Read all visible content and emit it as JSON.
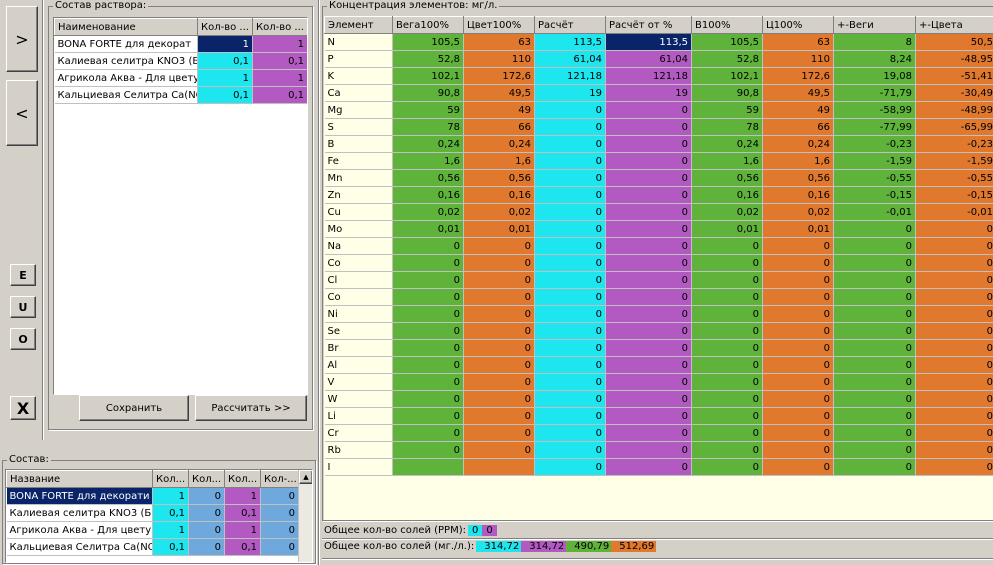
{
  "nav": {
    "next": ">",
    "prev": "<",
    "e": "E",
    "u": "U",
    "o": "O",
    "close": "X"
  },
  "solution": {
    "title": "Состав раствора:",
    "columns": [
      "Наименование",
      "Кол-во ...",
      "Кол-во ..."
    ],
    "rows": [
      [
        "BONA FORTE для декорат",
        "1",
        "1"
      ],
      [
        "Калиевая селитра KNO3 (Б",
        "0,1",
        "0,1"
      ],
      [
        "Агрикола Аква - Для цвету",
        "1",
        "1"
      ],
      [
        "Кальциевая Селитра Ca(NO",
        "0,1",
        "0,1"
      ]
    ],
    "save": "Сохранить",
    "calc": "Рассчитать >>"
  },
  "composition": {
    "title": "Состав:",
    "columns": [
      "Название",
      "Кол...",
      "Кол...",
      "Кол...",
      "Кол-..."
    ],
    "rows": [
      [
        "BONA FORTE для декорати",
        "1",
        "0",
        "1",
        "0"
      ],
      [
        "Калиевая селитра KNO3 (Б",
        "0,1",
        "0",
        "0,1",
        "0"
      ],
      [
        "Агрикола Аква - Для цветущ",
        "1",
        "0",
        "1",
        "0"
      ],
      [
        "Кальциевая Селитра Ca(NO",
        "0,1",
        "0",
        "0,1",
        "0"
      ]
    ]
  },
  "conc": {
    "title": "Концентрация элементов: мг/л.",
    "columns": [
      "Элемент",
      "Вега100%",
      "Цвет100%",
      "Расчёт",
      "Расчёт от %",
      "B100%",
      "Ц100%",
      "+-Веги",
      "+-Цвета"
    ],
    "rows": [
      [
        "N",
        "105,5",
        "63",
        "113,5",
        "113,5",
        "105,5",
        "63",
        "8",
        "50,5"
      ],
      [
        "P",
        "52,8",
        "110",
        "61,04",
        "61,04",
        "52,8",
        "110",
        "8,24",
        "-48,95"
      ],
      [
        "K",
        "102,1",
        "172,6",
        "121,18",
        "121,18",
        "102,1",
        "172,6",
        "19,08",
        "-51,41"
      ],
      [
        "Ca",
        "90,8",
        "49,5",
        "19",
        "19",
        "90,8",
        "49,5",
        "-71,79",
        "-30,49"
      ],
      [
        "Mg",
        "59",
        "49",
        "0",
        "0",
        "59",
        "49",
        "-58,99",
        "-48,99"
      ],
      [
        "S",
        "78",
        "66",
        "0",
        "0",
        "78",
        "66",
        "-77,99",
        "-65,99"
      ],
      [
        "B",
        "0,24",
        "0,24",
        "0",
        "0",
        "0,24",
        "0,24",
        "-0,23",
        "-0,23"
      ],
      [
        "Fe",
        "1,6",
        "1,6",
        "0",
        "0",
        "1,6",
        "1,6",
        "-1,59",
        "-1,59"
      ],
      [
        "Mn",
        "0,56",
        "0,56",
        "0",
        "0",
        "0,56",
        "0,56",
        "-0,55",
        "-0,55"
      ],
      [
        "Zn",
        "0,16",
        "0,16",
        "0",
        "0",
        "0,16",
        "0,16",
        "-0,15",
        "-0,15"
      ],
      [
        "Cu",
        "0,02",
        "0,02",
        "0",
        "0",
        "0,02",
        "0,02",
        "-0,01",
        "-0,01"
      ],
      [
        "Mo",
        "0,01",
        "0,01",
        "0",
        "0",
        "0,01",
        "0,01",
        "0",
        "0"
      ],
      [
        "Na",
        "0",
        "0",
        "0",
        "0",
        "0",
        "0",
        "0",
        "0"
      ],
      [
        "Co",
        "0",
        "0",
        "0",
        "0",
        "0",
        "0",
        "0",
        "0"
      ],
      [
        "Cl",
        "0",
        "0",
        "0",
        "0",
        "0",
        "0",
        "0",
        "0"
      ],
      [
        "Co",
        "0",
        "0",
        "0",
        "0",
        "0",
        "0",
        "0",
        "0"
      ],
      [
        "Ni",
        "0",
        "0",
        "0",
        "0",
        "0",
        "0",
        "0",
        "0"
      ],
      [
        "Se",
        "0",
        "0",
        "0",
        "0",
        "0",
        "0",
        "0",
        "0"
      ],
      [
        "Br",
        "0",
        "0",
        "0",
        "0",
        "0",
        "0",
        "0",
        "0"
      ],
      [
        "Al",
        "0",
        "0",
        "0",
        "0",
        "0",
        "0",
        "0",
        "0"
      ],
      [
        "V",
        "0",
        "0",
        "0",
        "0",
        "0",
        "0",
        "0",
        "0"
      ],
      [
        "W",
        "0",
        "0",
        "0",
        "0",
        "0",
        "0",
        "0",
        "0"
      ],
      [
        "Li",
        "0",
        "0",
        "0",
        "0",
        "0",
        "0",
        "0",
        "0"
      ],
      [
        "Cr",
        "0",
        "0",
        "0",
        "0",
        "0",
        "0",
        "0",
        "0"
      ],
      [
        "Rb",
        "0",
        "0",
        "0",
        "0",
        "0",
        "0",
        "0",
        "0"
      ],
      [
        "I",
        "",
        "",
        "0",
        "0",
        "0",
        "0",
        "0",
        "0"
      ]
    ]
  },
  "totals": {
    "ppm_label": "Общее кол-во солей (PPM):",
    "ppm_values": [
      "0",
      "0"
    ],
    "mg_label": "Общее кол-во солей (мг./л.):",
    "mg_values": [
      "314,72",
      "314,72",
      "490,79",
      "512,69"
    ]
  },
  "colors": {
    "green": "#5fb33a",
    "orange": "#e0782e",
    "cyan": "#1ee6ee",
    "purple": "#b35ac2",
    "blue": "#6fa8dc",
    "selection": "#0a246a"
  },
  "icons": {
    "scroll_up": "▲"
  }
}
